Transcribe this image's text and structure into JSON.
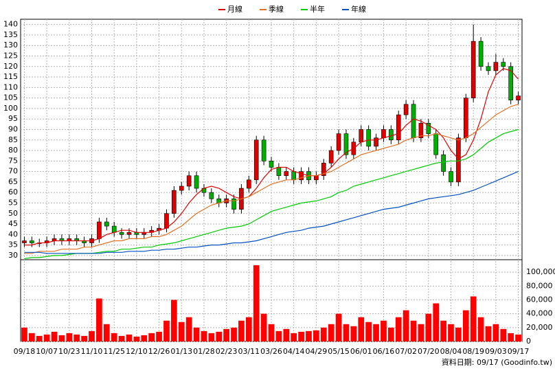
{
  "chart_data": [
    {
      "type": "candlestick",
      "open": [
        36,
        37,
        36,
        36,
        37,
        38,
        37,
        38,
        37,
        36,
        38,
        46,
        44,
        41,
        40,
        41,
        40,
        41,
        42,
        43,
        50,
        61,
        63,
        68,
        62,
        60,
        57,
        55,
        57,
        52,
        62,
        66,
        85,
        75,
        72,
        68,
        70,
        66,
        70,
        66,
        68,
        74,
        80,
        88,
        78,
        84,
        90,
        82,
        86,
        90,
        85,
        97,
        102,
        86,
        93,
        88,
        78,
        70,
        65,
        86,
        105,
        132,
        120,
        118,
        122,
        120,
        104
      ],
      "high": [
        39,
        39,
        38,
        39,
        40,
        40,
        40,
        40,
        39,
        40,
        48,
        48,
        46,
        43,
        43,
        43,
        43,
        44,
        45,
        52,
        63,
        65,
        70,
        70,
        64,
        62,
        59,
        59,
        59,
        64,
        68,
        87,
        87,
        77,
        74,
        72,
        72,
        72,
        72,
        70,
        76,
        82,
        90,
        90,
        86,
        92,
        92,
        88,
        92,
        92,
        99,
        104,
        104,
        95,
        95,
        90,
        80,
        72,
        88,
        107,
        140,
        134,
        122,
        126,
        124,
        122,
        108
      ],
      "low": [
        34,
        34,
        34,
        34,
        35,
        35,
        35,
        35,
        34,
        34,
        36,
        42,
        39,
        38,
        38,
        38,
        38,
        39,
        40,
        41,
        48,
        59,
        61,
        60,
        58,
        55,
        53,
        53,
        50,
        50,
        60,
        64,
        73,
        70,
        66,
        66,
        64,
        64,
        64,
        64,
        66,
        72,
        78,
        76,
        76,
        82,
        80,
        80,
        84,
        83,
        83,
        95,
        84,
        84,
        86,
        76,
        68,
        63,
        63,
        84,
        103,
        118,
        116,
        116,
        118,
        102,
        102
      ],
      "close": [
        37,
        36,
        36,
        37,
        38,
        37,
        38,
        37,
        36,
        38,
        46,
        44,
        41,
        40,
        41,
        40,
        41,
        42,
        43,
        50,
        61,
        63,
        68,
        62,
        60,
        57,
        55,
        57,
        52,
        62,
        66,
        85,
        75,
        72,
        68,
        70,
        66,
        70,
        66,
        68,
        74,
        80,
        88,
        78,
        84,
        90,
        82,
        86,
        90,
        85,
        97,
        102,
        86,
        93,
        88,
        78,
        70,
        65,
        86,
        105,
        132,
        120,
        118,
        122,
        120,
        104,
        106
      ],
      "up_color": "#e00000",
      "down_color": "#00b000",
      "series": [
        {
          "name": "月線",
          "color": "#e00000",
          "values": [
            35,
            35,
            36,
            36,
            37,
            37,
            37,
            37,
            37,
            37,
            38,
            40,
            41,
            42,
            42,
            41,
            41,
            41,
            42,
            43,
            46,
            50,
            55,
            59,
            62,
            63,
            62,
            60,
            58,
            57,
            58,
            62,
            67,
            71,
            72,
            72,
            70,
            69,
            68,
            68,
            69,
            72,
            76,
            79,
            81,
            84,
            85,
            85,
            86,
            87,
            88,
            92,
            95,
            94,
            92,
            90,
            86,
            80,
            76,
            78,
            85,
            95,
            108,
            116,
            119,
            118,
            114
          ]
        },
        {
          "name": "季線",
          "color": "#e07020",
          "values": [
            31,
            31,
            32,
            32,
            32,
            33,
            33,
            33,
            34,
            34,
            35,
            36,
            37,
            37,
            38,
            38,
            38,
            39,
            39,
            40,
            42,
            44,
            47,
            50,
            52,
            54,
            55,
            56,
            56,
            57,
            58,
            60,
            62,
            64,
            65,
            66,
            66,
            67,
            68,
            68,
            69,
            70,
            72,
            74,
            76,
            78,
            79,
            80,
            81,
            82,
            83,
            85,
            86,
            87,
            87,
            88,
            87,
            86,
            85,
            86,
            88,
            91,
            94,
            97,
            99,
            101,
            102
          ]
        },
        {
          "name": "半年",
          "color": "#00cc00",
          "values": [
            28.5,
            29,
            29,
            29.5,
            30,
            30,
            30.5,
            31,
            31,
            31,
            31.5,
            32,
            32,
            33,
            33,
            33.5,
            34,
            34,
            35,
            35.5,
            36,
            37,
            38,
            39,
            40,
            41,
            42,
            43,
            43.5,
            44,
            45,
            47,
            49,
            51,
            52,
            53,
            54,
            55,
            55.5,
            56,
            57,
            58,
            60,
            61,
            63,
            64,
            65,
            66,
            67,
            68,
            69,
            70,
            71,
            72,
            73,
            74,
            74.5,
            75,
            75,
            76,
            78,
            81,
            84,
            86,
            88,
            89,
            90
          ]
        },
        {
          "name": "年線",
          "color": "#0050c0",
          "values": [
            31.5,
            31.5,
            31.5,
            31,
            31,
            31,
            31,
            31,
            31,
            31,
            31,
            31.5,
            31.5,
            31.5,
            32,
            32,
            32,
            32.5,
            32.5,
            33,
            33,
            33.5,
            34,
            34,
            34.5,
            35,
            35,
            35.5,
            36,
            36,
            36.5,
            37,
            38,
            39,
            40,
            41,
            41.5,
            42,
            43,
            43.5,
            44,
            45,
            46,
            47,
            48,
            49,
            50,
            51,
            52,
            52.5,
            53,
            54,
            55,
            56,
            57,
            57.5,
            58,
            58.5,
            59,
            60,
            61,
            62.5,
            64,
            65.5,
            67,
            68.5,
            70
          ]
        }
      ],
      "ylim": [
        28,
        142.5
      ],
      "yticks": [
        30,
        35,
        40,
        45,
        50,
        55,
        60,
        65,
        70,
        75,
        80,
        85,
        90,
        95,
        100,
        105,
        110,
        115,
        120,
        125,
        130,
        135,
        140
      ],
      "grid": true
    },
    {
      "type": "bar",
      "categories": [
        "09/18",
        null,
        null,
        "10/07",
        null,
        null,
        "10/23",
        null,
        null,
        "11/10",
        null,
        null,
        "11/25",
        null,
        null,
        "12/10",
        null,
        null,
        "12/26",
        null,
        null,
        "01/13",
        null,
        null,
        "01/28",
        null,
        null,
        "02/23",
        null,
        null,
        "03/11",
        null,
        null,
        "03/26",
        null,
        null,
        "04/14",
        null,
        null,
        "04/29",
        null,
        null,
        "05/15",
        null,
        null,
        "06/01",
        null,
        null,
        "06/16",
        null,
        null,
        "07/02",
        null,
        null,
        "07/20",
        null,
        null,
        "08/04",
        null,
        null,
        "08/19",
        null,
        null,
        "09/03",
        null,
        null,
        "09/17"
      ],
      "values": [
        20000,
        12000,
        8000,
        10000,
        14000,
        9000,
        12000,
        10000,
        8000,
        15000,
        62000,
        25000,
        12000,
        8000,
        10000,
        7000,
        9000,
        12000,
        14000,
        30000,
        60000,
        28000,
        35000,
        20000,
        15000,
        12000,
        14000,
        18000,
        20000,
        30000,
        35000,
        110000,
        40000,
        25000,
        15000,
        18000,
        12000,
        14000,
        15000,
        16000,
        20000,
        25000,
        40000,
        25000,
        22000,
        35000,
        28000,
        25000,
        30000,
        20000,
        35000,
        45000,
        30000,
        25000,
        40000,
        55000,
        30000,
        25000,
        20000,
        45000,
        65000,
        35000,
        22000,
        25000,
        18000,
        12000,
        10000
      ],
      "color": "#ff0000",
      "ylim": [
        0,
        118000
      ],
      "yticks": [
        0,
        {
          "value": 20000,
          "label": "20,000"
        },
        {
          "value": 40000,
          "label": "40,000"
        },
        {
          "value": 60000,
          "label": "60,000"
        },
        {
          "value": 80000,
          "label": "80,000"
        },
        {
          "value": 100000,
          "label": "100,000"
        }
      ],
      "grid": true,
      "annotation": "資料日期: 09/17 (Goodinfo.tw)"
    }
  ]
}
